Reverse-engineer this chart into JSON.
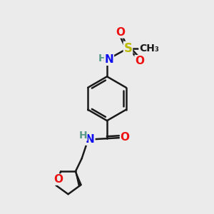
{
  "background_color": "#ebebeb",
  "bond_color": "#1a1a1a",
  "bond_width": 1.8,
  "atom_colors": {
    "C": "#1a1a1a",
    "H": "#5a9a8a",
    "N": "#1010ee",
    "O": "#ee1010",
    "S": "#bbbb00"
  },
  "font_size": 11,
  "fig_size": [
    3.0,
    3.0
  ],
  "dpi": 100,
  "xlim": [
    0,
    10
  ],
  "ylim": [
    0,
    10
  ]
}
